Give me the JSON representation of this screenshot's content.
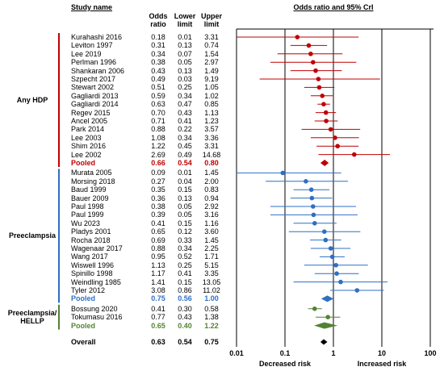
{
  "chart_data": {
    "type": "forest",
    "headers": {
      "study": "Study name",
      "or": "Odds ratio",
      "lower": "Lower limit",
      "upper": "Upper limit",
      "plot": "Odds ratio and 95% CrI"
    },
    "xscale": "log",
    "xlim": [
      0.01,
      100
    ],
    "xticks": [
      0.01,
      0.1,
      1,
      10,
      100
    ],
    "left_label": "Decreased risk",
    "right_label": "Increased risk",
    "groups": [
      {
        "name": "Any HDP",
        "color": "#c00000",
        "studies": [
          {
            "name": "Kurahashi 2016",
            "values": [
              0.18,
              0.01,
              3.31
            ],
            "value_labels": [
              "0.18",
              "0.01",
              "3.31"
            ]
          },
          {
            "name": "Leviton 1997",
            "values": [
              0.31,
              0.13,
              0.74
            ],
            "value_labels": [
              "0.31",
              "0.13",
              "0.74"
            ]
          },
          {
            "name": "Lee 2019",
            "values": [
              0.34,
              0.07,
              1.54
            ],
            "value_labels": [
              "0.34",
              "0.07",
              "1.54"
            ]
          },
          {
            "name": "Perlman 1996",
            "values": [
              0.38,
              0.05,
              2.97
            ],
            "value_labels": [
              "0.38",
              "0.05",
              "2.97"
            ]
          },
          {
            "name": "Shankaran 2006",
            "values": [
              0.43,
              0.13,
              1.49
            ],
            "value_labels": [
              "0.43",
              "0.13",
              "1.49"
            ]
          },
          {
            "name": "Szpecht 2017",
            "values": [
              0.49,
              0.03,
              9.19
            ],
            "value_labels": [
              "0.49",
              "0.03",
              "9.19"
            ]
          },
          {
            "name": "Stewart 2002",
            "values": [
              0.51,
              0.25,
              1.05
            ],
            "value_labels": [
              "0.51",
              "0.25",
              "1.05"
            ]
          },
          {
            "name": "Gagliardi 2013",
            "values": [
              0.59,
              0.34,
              1.02
            ],
            "value_labels": [
              "0.59",
              "0.34",
              "1.02"
            ]
          },
          {
            "name": "Gagliardi 2014",
            "values": [
              0.63,
              0.47,
              0.85
            ],
            "value_labels": [
              "0.63",
              "0.47",
              "0.85"
            ]
          },
          {
            "name": "Regev 2015",
            "values": [
              0.7,
              0.43,
              1.13
            ],
            "value_labels": [
              "0.70",
              "0.43",
              "1.13"
            ]
          },
          {
            "name": "Ancel 2005",
            "values": [
              0.71,
              0.41,
              1.23
            ],
            "value_labels": [
              "0.71",
              "0.41",
              "1.23"
            ]
          },
          {
            "name": "Park 2014",
            "values": [
              0.88,
              0.22,
              3.57
            ],
            "value_labels": [
              "0.88",
              "0.22",
              "3.57"
            ]
          },
          {
            "name": "Lee 2003",
            "values": [
              1.08,
              0.34,
              3.36
            ],
            "value_labels": [
              "1.08",
              "0.34",
              "3.36"
            ]
          },
          {
            "name": "Shim 2016",
            "values": [
              1.22,
              0.45,
              3.31
            ],
            "value_labels": [
              "1.22",
              "0.45",
              "3.31"
            ]
          },
          {
            "name": "Lee 2002",
            "values": [
              2.69,
              0.49,
              14.68
            ],
            "value_labels": [
              "2.69",
              "0.49",
              "14.68"
            ]
          }
        ],
        "pooled": {
          "name": "Pooled",
          "values": [
            0.66,
            0.54,
            0.8
          ],
          "value_labels": [
            "0.66",
            "0.54",
            "0.80"
          ]
        }
      },
      {
        "name": "Preeclampsia",
        "color": "#2e6fc4",
        "studies": [
          {
            "name": "Murata 2005",
            "values": [
              0.09,
              0.01,
              1.45
            ],
            "value_labels": [
              "0.09",
              "0.01",
              "1.45"
            ]
          },
          {
            "name": "Morsing 2018",
            "values": [
              0.27,
              0.04,
              2.0
            ],
            "value_labels": [
              "0.27",
              "0.04",
              "2.00"
            ]
          },
          {
            "name": "Baud 1999",
            "values": [
              0.35,
              0.15,
              0.83
            ],
            "value_labels": [
              "0.35",
              "0.15",
              "0.83"
            ]
          },
          {
            "name": "Bauer 2009",
            "values": [
              0.36,
              0.13,
              0.94
            ],
            "value_labels": [
              "0.36",
              "0.13",
              "0.94"
            ]
          },
          {
            "name": "Paul 1998",
            "values": [
              0.38,
              0.05,
              2.92
            ],
            "value_labels": [
              "0.38",
              "0.05",
              "2.92"
            ]
          },
          {
            "name": "Paul 1999",
            "values": [
              0.39,
              0.05,
              3.16
            ],
            "value_labels": [
              "0.39",
              "0.05",
              "3.16"
            ]
          },
          {
            "name": "Wu 2023",
            "values": [
              0.41,
              0.15,
              1.16
            ],
            "value_labels": [
              "0.41",
              "0.15",
              "1.16"
            ]
          },
          {
            "name": "Pladys 2001",
            "values": [
              0.65,
              0.12,
              3.6
            ],
            "value_labels": [
              "0.65",
              "0.12",
              "3.60"
            ]
          },
          {
            "name": "Rocha 2018",
            "values": [
              0.69,
              0.33,
              1.45
            ],
            "value_labels": [
              "0.69",
              "0.33",
              "1.45"
            ]
          },
          {
            "name": "Wagenaar 2017",
            "values": [
              0.88,
              0.34,
              2.25
            ],
            "value_labels": [
              "0.88",
              "0.34",
              "2.25"
            ]
          },
          {
            "name": "Wang 2017",
            "values": [
              0.95,
              0.52,
              1.71
            ],
            "value_labels": [
              "0.95",
              "0.52",
              "1.71"
            ]
          },
          {
            "name": "Wiswell 1996",
            "values": [
              1.13,
              0.25,
              5.15
            ],
            "value_labels": [
              "1.13",
              "0.25",
              "5.15"
            ]
          },
          {
            "name": "Spinillo 1998",
            "values": [
              1.17,
              0.41,
              3.35
            ],
            "value_labels": [
              "1.17",
              "0.41",
              "3.35"
            ]
          },
          {
            "name": "Weindling 1985",
            "values": [
              1.41,
              0.15,
              13.05
            ],
            "value_labels": [
              "1.41",
              "0.15",
              "13.05"
            ]
          },
          {
            "name": "Tyler 2012",
            "values": [
              3.08,
              0.86,
              11.02
            ],
            "value_labels": [
              "3.08",
              "0.86",
              "11.02"
            ]
          }
        ],
        "pooled": {
          "name": "Pooled",
          "values": [
            0.75,
            0.56,
            1.0
          ],
          "value_labels": [
            "0.75",
            "0.56",
            "1.00"
          ]
        }
      },
      {
        "name": "Preeclampsia/ HELLP",
        "color": "#548235",
        "studies": [
          {
            "name": "Bossung 2020",
            "values": [
              0.41,
              0.3,
              0.58
            ],
            "value_labels": [
              "0.41",
              "0.30",
              "0.58"
            ]
          },
          {
            "name": "Tokumasu 2016",
            "values": [
              0.77,
              0.43,
              1.38
            ],
            "value_labels": [
              "0.77",
              "0.43",
              "1.38"
            ]
          }
        ],
        "pooled": {
          "name": "Pooled",
          "values": [
            0.65,
            0.4,
            1.22
          ],
          "value_labels": [
            "0.65",
            "0.40",
            "1.22"
          ]
        }
      }
    ],
    "overall": {
      "name": "Overall",
      "color": "#000000",
      "values": [
        0.63,
        0.54,
        0.75
      ],
      "value_labels": [
        "0.63",
        "0.54",
        "0.75"
      ]
    }
  }
}
